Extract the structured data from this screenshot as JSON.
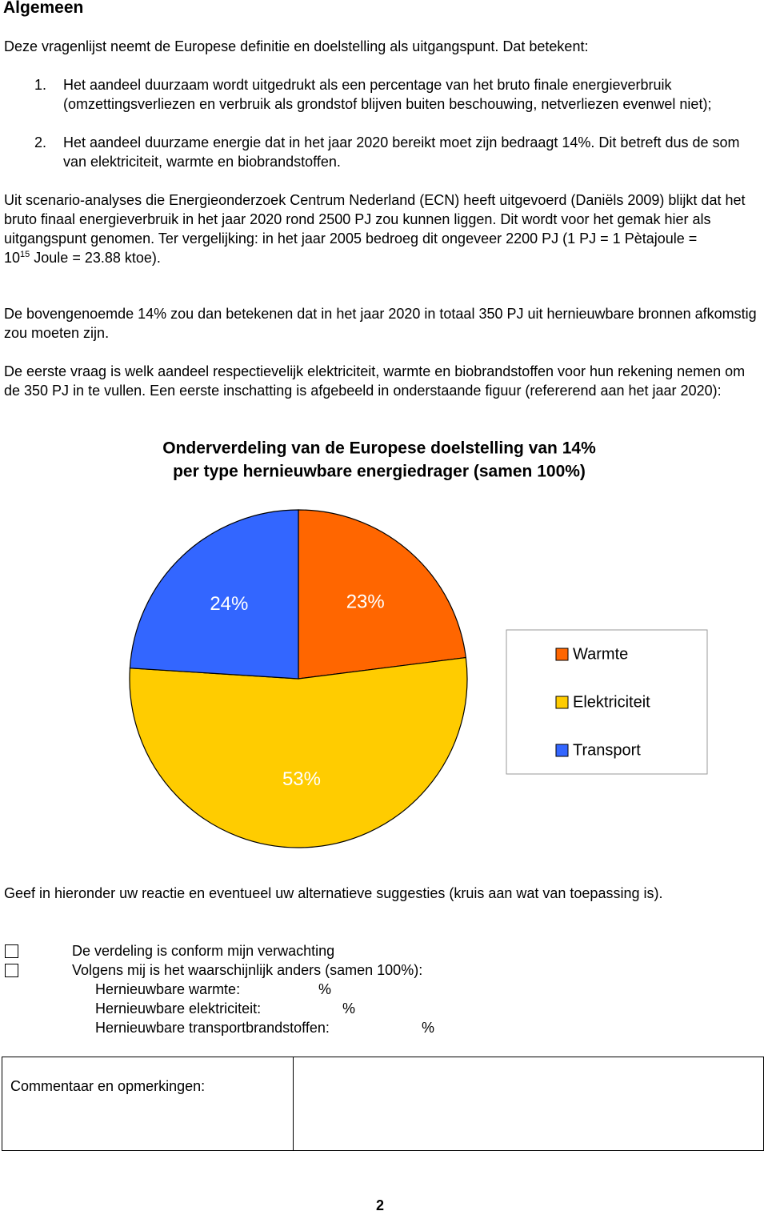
{
  "header": {
    "title": "Algemeen"
  },
  "intro": "Deze vragenlijst neemt de Europese definitie en doelstelling als uitgangspunt. Dat betekent:",
  "list": [
    {
      "marker": "1.",
      "text": "Het aandeel duurzaam wordt uitgedrukt als een percentage van het bruto finale energieverbruik (omzettingsverliezen en verbruik als grondstof blijven buiten beschouwing, netverliezen evenwel niet);"
    },
    {
      "marker": "2.",
      "text": "Het aandeel duurzame energie dat in het jaar 2020 bereikt moet zijn bedraagt 14%. Dit betreft dus de som van elektriciteit, warmte en biobrandstoffen."
    }
  ],
  "scenario": {
    "text": "Uit scenario-analyses die Energieonderzoek Centrum Nederland (ECN) heeft uitgevoerd (Daniëls 2009) blijkt dat het bruto finaal energieverbruik in het jaar 2020 rond 2500 PJ zou kunnen liggen. Dit wordt voor het gemak hier als uitgangspunt genomen. Ter vergelijking: in het jaar 2005 bedroeg dit ongeveer 2200 PJ (1 PJ = 1 Pètajoule =",
    "base": "10",
    "exponent": "15",
    "rest": " Joule = 23.88 ktoe)."
  },
  "paragraphs": [
    "De bovengenoemde 14% zou dan betekenen dat in het jaar 2020 in totaal 350 PJ uit hernieuwbare bronnen afkomstig zou moeten zijn.",
    "De eerste vraag is welk aandeel respectievelijk elektriciteit, warmte en biobrandstoffen voor hun rekening nemen om de 350 PJ in te vullen. Een eerste inschatting is afgebeeld in onderstaande figuur (refererend aan het jaar 2020):"
  ],
  "chart_data": {
    "type": "pie",
    "title": "Onderverdeling van de Europese doelstelling van 14%",
    "subtitle": "per type hernieuwbare energiedrager (samen 100%)",
    "categories": [
      "Warmte",
      "Elektriciteit",
      "Transport"
    ],
    "values": [
      23,
      53,
      24
    ],
    "value_labels": [
      "23%",
      "53%",
      "24%"
    ],
    "colors": [
      "#ff6600",
      "#ffcc00",
      "#3366ff"
    ],
    "legend": "right"
  },
  "question": "Geef in hieronder uw reactie en eventueel uw alternatieve suggesties (kruis aan wat van toepassing is).",
  "options": [
    "De verdeling is conform mijn verwachting",
    "Volgens mij is het waarschijnlijk anders (samen 100%):"
  ],
  "fields": [
    {
      "label": "Hernieuwbare warmte:",
      "unit": "%"
    },
    {
      "label": "Hernieuwbare elektriciteit:",
      "unit": "%"
    },
    {
      "label": "Hernieuwbare transportbrandstoffen:",
      "unit": "%"
    }
  ],
  "comment_label": "Commentaar en opmerkingen:",
  "page_number": "2"
}
